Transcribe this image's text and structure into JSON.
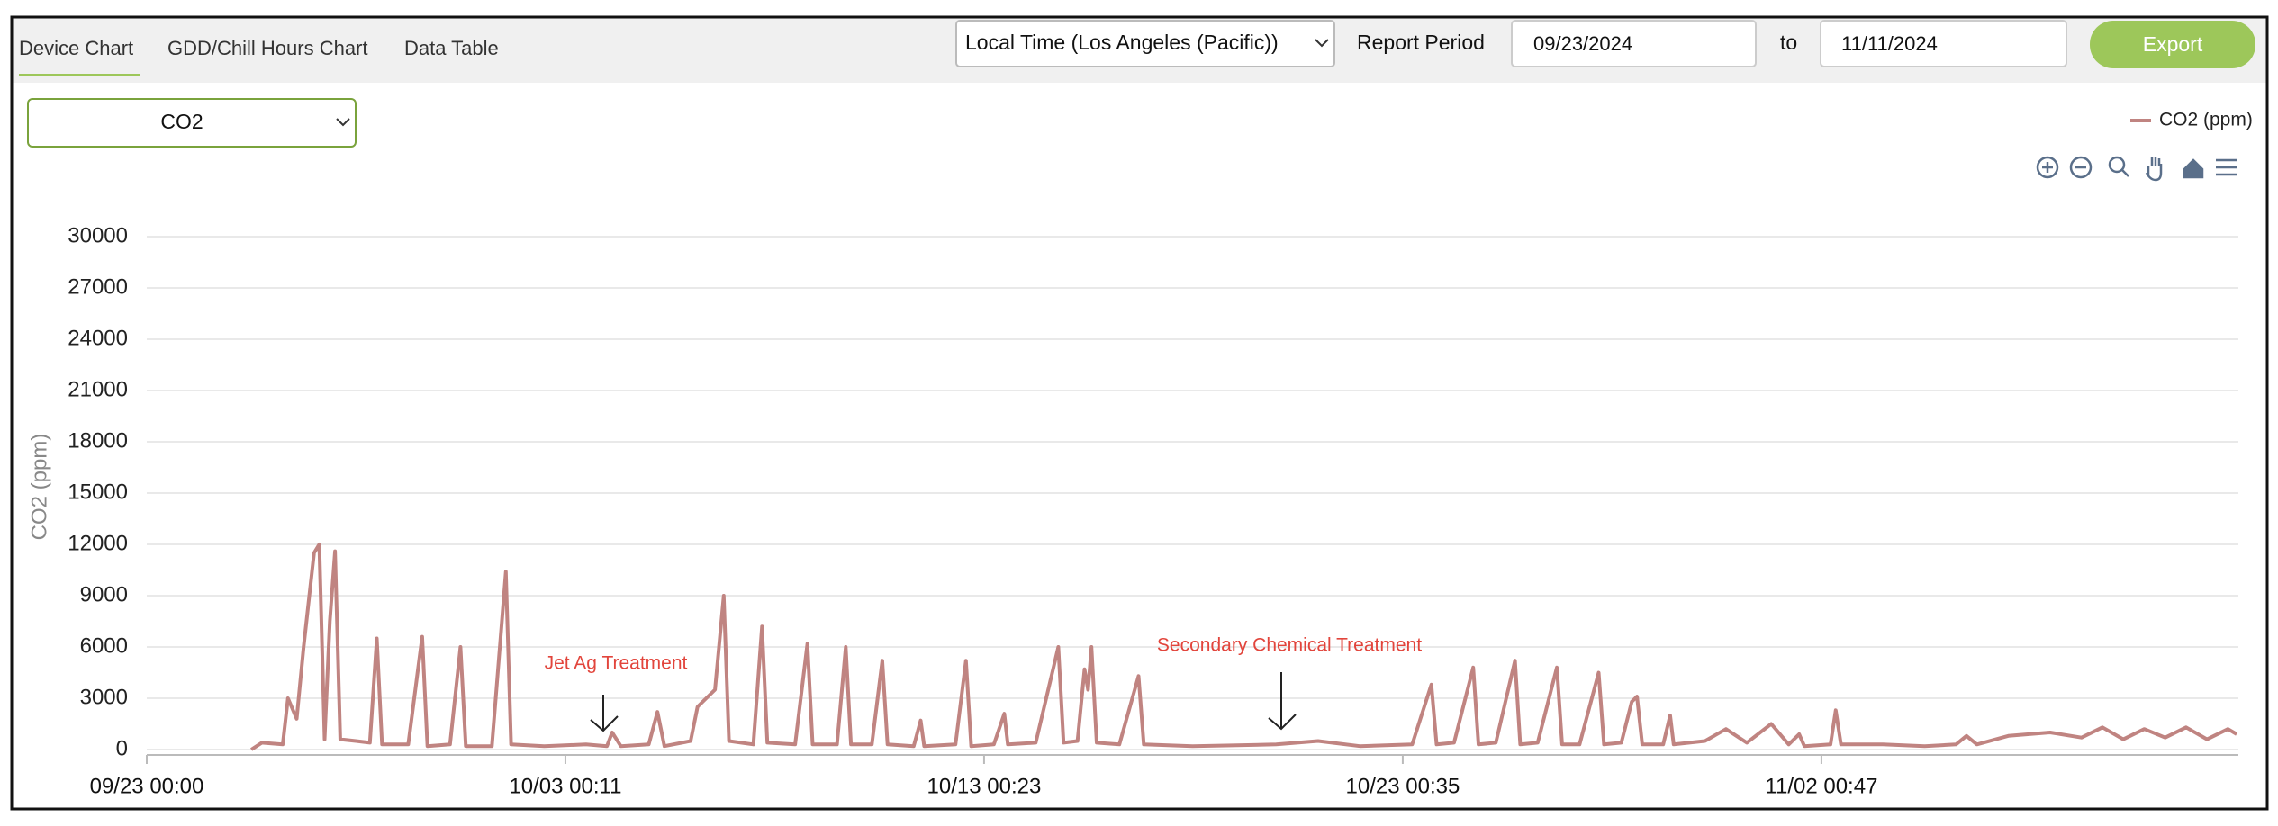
{
  "ui": {
    "tabs": [
      "Device Chart",
      "GDD/Chill Hours Chart",
      "Data Table"
    ],
    "timezone": "Local Time (Los Angeles (Pacific))",
    "report_period_label": "Report Period",
    "start_date": "09/23/2024",
    "to_label": "to",
    "end_date": "11/11/2024",
    "export_button": "Export",
    "sensor_select": "CO2"
  },
  "chart_data": {
    "type": "line",
    "y_label": "CO2 (ppm)",
    "annotations": [
      "Jet Ag Treatment",
      "Secondary Chemical Treatment"
    ],
    "grid": true,
    "legend": "top-right",
    "ylim": [
      0,
      30000
    ],
    "yticks": [
      0,
      3000,
      6000,
      9000,
      12000,
      15000,
      18000,
      21000,
      24000,
      27000,
      30000
    ],
    "xlim": [
      "09/23 00:00",
      "11/12 00:00"
    ],
    "xticks": [
      "09/23 00:00",
      "10/03 00:11",
      "10/13 00:23",
      "10/23 00:35",
      "11/02 00:47"
    ],
    "x": [
      "09/25 12:00",
      "09/25 18:00",
      "09/26 06:00",
      "09/26 09:00",
      "09/26 14:00",
      "09/26 18:00",
      "09/27 00:00",
      "09/27 03:00",
      "09/27 06:00",
      "09/27 09:00",
      "09/27 12:00",
      "09/27 15:00",
      "09/28 00:00",
      "09/28 08:00",
      "09/28 12:00",
      "09/28 15:00",
      "09/29 06:00",
      "09/29 14:00",
      "09/29 17:00",
      "09/30 06:00",
      "09/30 12:00",
      "09/30 15:00",
      "10/01 06:00",
      "10/01 14:00",
      "10/01 17:00",
      "10/02 12:00",
      "10/03 12:00",
      "10/04 00:00",
      "10/04 03:00",
      "10/04 08:00",
      "10/05 00:00",
      "10/05 05:00",
      "10/05 09:00",
      "10/06 00:00",
      "10/06 04:00",
      "10/06 14:00",
      "10/06 19:00",
      "10/06 22:00",
      "10/07 12:00",
      "10/07 17:00",
      "10/07 20:00",
      "10/08 12:00",
      "10/08 19:00",
      "10/08 22:00",
      "10/09 12:00",
      "10/09 17:00",
      "10/09 20:00",
      "10/10 08:00",
      "10/10 14:00",
      "10/10 17:00",
      "10/11 08:00",
      "10/11 12:00",
      "10/11 14:00",
      "10/12 08:00",
      "10/12 14:00",
      "10/12 17:00",
      "10/13 06:00",
      "10/13 12:00",
      "10/13 14:00",
      "10/14 06:00",
      "10/14 19:00",
      "10/14 22:00",
      "10/15 06:00",
      "10/15 10:00",
      "10/15 12:00",
      "10/15 14:00",
      "10/15 17:00",
      "10/16 06:00",
      "10/16 17:00",
      "10/16 20:00",
      "10/18 00:00",
      "10/20 00:00",
      "10/21 00:00",
      "10/22 00:00",
      "10/23 06:00",
      "10/23 17:00",
      "10/23 20:00",
      "10/24 06:00",
      "10/24 17:00",
      "10/24 20:00",
      "10/25 06:00",
      "10/25 17:00",
      "10/25 20:00",
      "10/26 06:00",
      "10/26 17:00",
      "10/26 20:00",
      "10/27 06:00",
      "10/27 17:00",
      "10/27 20:00",
      "10/28 06:00",
      "10/28 12:00",
      "10/28 15:00",
      "10/28 18:00",
      "10/29 06:00",
      "10/29 10:00",
      "10/29 12:00",
      "10/30 06:00",
      "10/30 18:00",
      "10/31 06:00",
      "10/31 20:00",
      "11/01 06:00",
      "11/01 12:00",
      "11/01 15:00",
      "11/02 06:00",
      "11/02 09:00",
      "11/02 12:00",
      "11/03 12:00",
      "11/04 12:00",
      "11/05 06:00",
      "11/05 12:00",
      "11/05 18:00",
      "11/06 12:00",
      "11/07 12:00",
      "11/08 06:00",
      "11/08 18:00",
      "11/09 06:00",
      "11/09 18:00",
      "11/10 06:00",
      "11/10 18:00",
      "11/11 06:00",
      "11/11 18:00",
      "11/11 23:00"
    ],
    "series": [
      {
        "name": "CO2 (ppm)",
        "color": "#c08481",
        "values": [
          0,
          400,
          300,
          3000,
          1800,
          6000,
          11500,
          12000,
          600,
          7500,
          11600,
          600,
          500,
          400,
          6500,
          300,
          300,
          6600,
          200,
          300,
          6000,
          200,
          200,
          10400,
          300,
          200,
          300,
          200,
          1000,
          200,
          300,
          2200,
          200,
          500,
          2500,
          3500,
          9000,
          500,
          300,
          7200,
          400,
          300,
          6200,
          300,
          300,
          6000,
          300,
          300,
          5200,
          300,
          200,
          1700,
          200,
          300,
          5200,
          200,
          300,
          2100,
          300,
          400,
          6000,
          400,
          500,
          4700,
          3500,
          6000,
          400,
          300,
          4300,
          300,
          200,
          300,
          500,
          200,
          300,
          3800,
          300,
          400,
          4800,
          300,
          400,
          5200,
          300,
          400,
          4800,
          300,
          300,
          4500,
          300,
          400,
          2800,
          3100,
          300,
          300,
          2000,
          300,
          500,
          1200,
          400,
          1500,
          300,
          900,
          200,
          300,
          2300,
          300,
          300,
          200,
          300,
          800,
          300,
          800,
          1000,
          700,
          1300,
          600,
          1200,
          700,
          1300,
          600,
          1200,
          900
        ]
      }
    ]
  }
}
